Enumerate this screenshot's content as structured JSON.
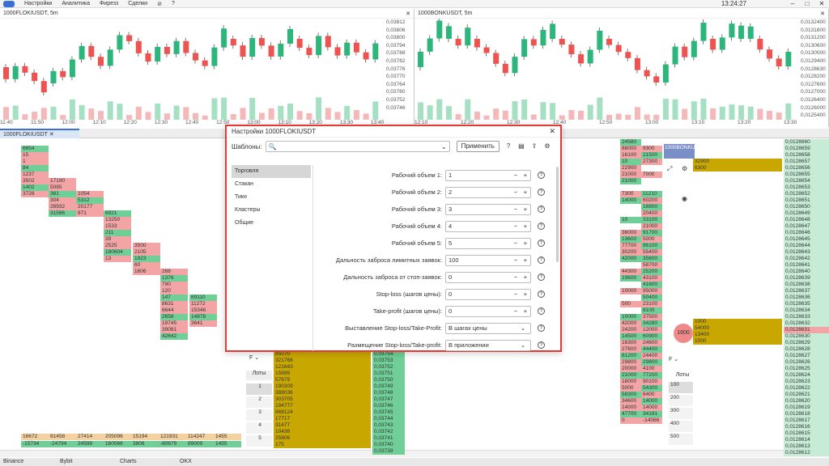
{
  "topbar": {
    "menu": [
      "Настройки",
      "Аналитика",
      "Фирезз",
      "Сделки"
    ],
    "time": "13:24:27"
  },
  "left_chart": {
    "title": "1000FLOKIUSDT, 5m",
    "prices": [
      "0,03812",
      "0,03806",
      "0,03800",
      "0,03794",
      "0,03788",
      "0,03782",
      "0,03776",
      "0,03770",
      "0,03764",
      "0,03760",
      "0,03752",
      "0,03746"
    ],
    "times": [
      "11:40",
      "11:50",
      "12:00",
      "12:10",
      "12:20",
      "12:30",
      "12:40",
      "12:50",
      "13:00",
      "13:10",
      "13:20",
      "13:30",
      "13:40"
    ]
  },
  "right_chart": {
    "title": "1000BONKUSDT, 5m",
    "prices": [
      "0,0132400",
      "0,0131800",
      "0,0131200",
      "0,0130600",
      "0,0130000",
      "0,0129400",
      "0,0128630",
      "0,0128200",
      "0,0127600",
      "0,0127000",
      "0,0126400",
      "0,0126000",
      "0,0125400"
    ],
    "times": [
      "12:10",
      "12:20",
      "12:30",
      "12:40",
      "12:50",
      "13:00",
      "13:10",
      "13:20",
      "13:30"
    ]
  },
  "tab": {
    "label": "1000FLOKIUSDT"
  },
  "modal": {
    "title": "Настройки 1000FLOKIUSDT",
    "templates_label": "Шаблоны:",
    "apply_label": "Применить",
    "nav": [
      "Торговля",
      "Стакан",
      "Тики",
      "Кластеры",
      "Общие"
    ],
    "rows": [
      {
        "label": "Рабочий объем 1:",
        "value": "1"
      },
      {
        "label": "Рабочий объем 2:",
        "value": "2"
      },
      {
        "label": "Рабочий объем 3:",
        "value": "3"
      },
      {
        "label": "Рабочий объем 4:",
        "value": "4"
      },
      {
        "label": "Рабочий объем 5:",
        "value": "5"
      },
      {
        "label": "Дальность заброса лимитных заявок:",
        "value": "100"
      },
      {
        "label": "Дальность заброса от стоп-заявок:",
        "value": "0"
      },
      {
        "label": "Stop-loss (шагов цены):",
        "value": "0"
      },
      {
        "label": "Take-profit (шагов цены):",
        "value": "0"
      },
      {
        "label": "Выставление Stop-loss/Take-Profit:",
        "value": "В шагах цены"
      },
      {
        "label": "Размещение Stop-loss/Take-profit:",
        "value": "В приложении"
      }
    ]
  },
  "left_cells": [
    [
      "6654",
      "15",
      "1",
      "84",
      "1237",
      "3502",
      "1402",
      "3728"
    ],
    [
      "17190",
      "5085",
      "361",
      "304",
      "26932",
      "31586"
    ],
    [
      "1054",
      "5312",
      "20177",
      "871"
    ],
    [
      "6921",
      "13250",
      "1533",
      "211",
      "39",
      "2525",
      "180604",
      "13"
    ],
    [
      "3500",
      "2105",
      "1923",
      "60",
      "1606"
    ],
    [
      "268",
      "1376",
      "790",
      "120",
      "147",
      "8631",
      "6644",
      "2658",
      "19745",
      "39081",
      "42642"
    ],
    [
      "69110",
      "11272",
      "15346",
      "14878",
      "3641"
    ]
  ],
  "bottom_vals": {
    "row1": [
      "16672",
      "81458",
      "27414",
      "205096",
      "15194",
      "121931",
      "114247",
      "1455"
    ],
    "row2": [
      "-15734",
      "-24794",
      "24598",
      "160066",
      "3806",
      "-80679",
      "89009",
      "1455"
    ]
  },
  "mid_book": {
    "qty": [
      "85070",
      "321766",
      "121643",
      "15899",
      "57679",
      "190309",
      "388036",
      "303705",
      "194777",
      "868124",
      "17717",
      "31477",
      "10436",
      "25806",
      "175"
    ],
    "prices": [
      "0,03754",
      "0,03753",
      "0,03752",
      "0,03751",
      "0,03750",
      "0,03749",
      "0,03748",
      "0,03747",
      "0,03746",
      "0,03745",
      "0,03744",
      "0,03743",
      "0,03742",
      "0,03741",
      "0,03740",
      "0,03739"
    ],
    "lots_label": "Лоты",
    "lots": [
      "1",
      "2",
      "3",
      "4",
      "5"
    ],
    "f_label": "F"
  },
  "right_book": {
    "rows": [
      [
        "24580",
        ""
      ],
      [
        "88000",
        "9300"
      ],
      [
        "16100",
        "21500"
      ],
      [
        "10",
        "27300"
      ],
      [
        "22900",
        ""
      ],
      [
        "21000",
        "7000"
      ],
      [
        "21000",
        ""
      ],
      [
        "",
        ""
      ],
      [
        "7300",
        "11210"
      ],
      [
        "14000",
        "60200"
      ],
      [
        "",
        "16900"
      ],
      [
        "",
        "20400"
      ],
      [
        "10",
        "33100"
      ],
      [
        "",
        "21000"
      ],
      [
        "36000",
        "91700"
      ],
      [
        "13600",
        "5000"
      ],
      [
        "77700",
        "96100"
      ],
      [
        "30200",
        "55400"
      ],
      [
        "42000",
        "35600"
      ],
      [
        "",
        "58700"
      ],
      [
        "44300",
        "25200"
      ],
      [
        "19600",
        "43100"
      ],
      [
        "",
        "41600"
      ],
      [
        "10000",
        "95000"
      ],
      [
        "",
        "50400"
      ],
      [
        "500",
        "23100"
      ],
      [
        "",
        "8100"
      ],
      [
        "10000",
        "37500"
      ],
      [
        "42000",
        "34280"
      ],
      [
        "24200",
        "12000"
      ],
      [
        "14500",
        "60900"
      ],
      [
        "16300",
        "24600"
      ],
      [
        "27600",
        "44400"
      ],
      [
        "61200",
        "24400"
      ],
      [
        "29800",
        "29800"
      ],
      [
        "20000",
        "4100"
      ],
      [
        "21000",
        "77200"
      ],
      [
        "18000",
        "90100"
      ],
      [
        "5000",
        "54300"
      ],
      [
        "58300",
        "6400"
      ],
      [
        "34600",
        "14000"
      ],
      [
        "14000",
        "14000"
      ],
      [
        "47700",
        "34181"
      ],
      [
        "0",
        "-14066"
      ]
    ],
    "prices": [
      "0,0128660",
      "0,0128659",
      "0,0128658",
      "0,0128657",
      "0,0128656",
      "0,0128655",
      "0,0128654",
      "0,0128653",
      "0,0128652",
      "0,0128651",
      "0,0128650",
      "0,0128649",
      "0,0128648",
      "0,0128647",
      "0,0128646",
      "0,0128645",
      "0,0128644",
      "0,0128643",
      "0,0128642",
      "0,0128641",
      "0,0128640",
      "0,0128639",
      "0,0128638",
      "0,0128637",
      "0,0128636",
      "0,0128635",
      "0,0128634",
      "0,0128633",
      "0,0128632",
      "0,0128631",
      "0,0128630",
      "0,0128629",
      "0,0128628",
      "0,0128627",
      "0,0128626",
      "0,0128625",
      "0,0128624",
      "0,0128623",
      "0,0128622",
      "0,0128621",
      "0,0128620",
      "0,0128619",
      "0,0128618",
      "0,0128617",
      "0,0128616",
      "0,0128615",
      "0,0128614",
      "0,0128613",
      "0,0128612"
    ],
    "tag": "1000BONKUSDT",
    "gold_vals": [
      "32900",
      "6300"
    ],
    "gold2_vals": [
      "1000",
      "54000",
      "13400",
      "1000"
    ],
    "bubble": "1600",
    "lots": [
      "100",
      "200",
      "300",
      "400",
      "500"
    ],
    "lots_label": "Лоты",
    "f_label": "F"
  },
  "bottom_bar": {
    "tabs": [
      "Binance",
      "Bybit",
      "Charts",
      "OKX"
    ]
  }
}
